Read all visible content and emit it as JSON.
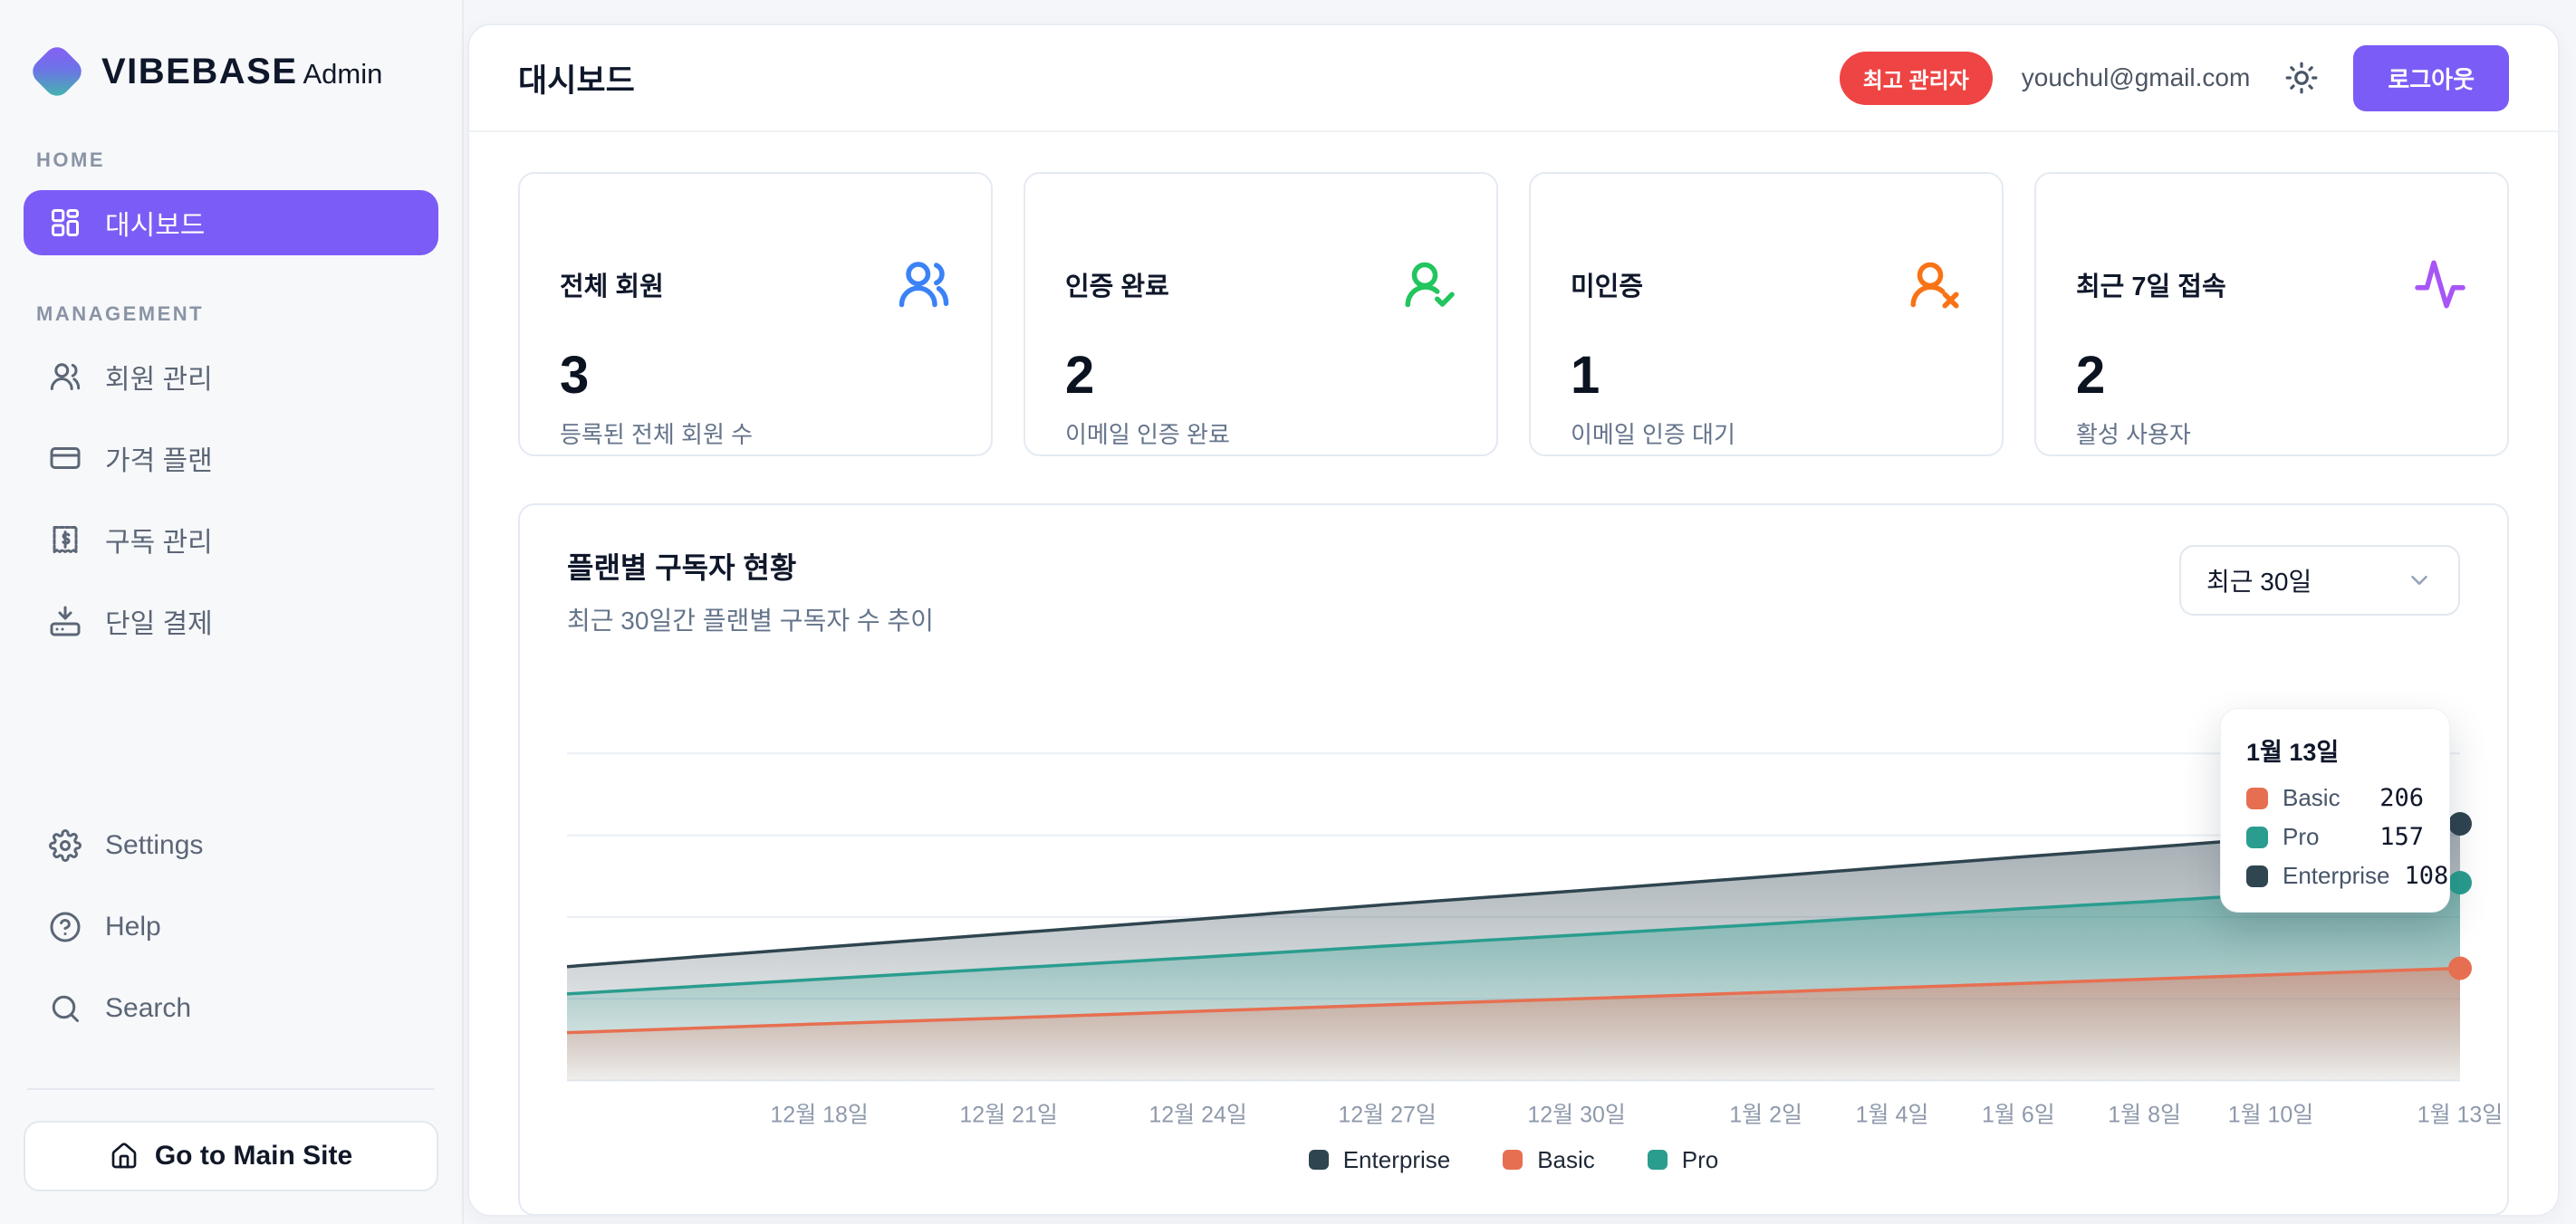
{
  "sidebar": {
    "logo": {
      "brand": "VIBEBASE",
      "suffix": "Admin"
    },
    "sections": [
      {
        "label": "HOME",
        "items": [
          {
            "label": "대시보드",
            "icon": "layout-grid-icon",
            "active": true
          }
        ]
      },
      {
        "label": "MANAGEMENT",
        "items": [
          {
            "label": "회원 관리",
            "icon": "users-icon"
          },
          {
            "label": "가격 플랜",
            "icon": "credit-card-icon"
          },
          {
            "label": "구독 관리",
            "icon": "receipt-icon"
          },
          {
            "label": "단일 결제",
            "icon": "payment-download-icon"
          }
        ]
      }
    ],
    "footer_items": [
      {
        "label": "Settings",
        "icon": "gear-icon"
      },
      {
        "label": "Help",
        "icon": "help-circle-icon"
      },
      {
        "label": "Search",
        "icon": "search-icon"
      }
    ],
    "main_site_button": "Go to Main Site"
  },
  "header": {
    "title": "대시보드",
    "role_badge": "최고 관리자",
    "email": "youchul@gmail.com",
    "logout_label": "로그아웃",
    "badge_color": "#ef4444",
    "accent_color": "#7c5cf6"
  },
  "stats": {
    "cards": [
      {
        "title": "전체 회원",
        "value": "3",
        "subtitle": "등록된 전체 회원 수",
        "icon": "users-icon",
        "color": "#3b82f6"
      },
      {
        "title": "인증 완료",
        "value": "2",
        "subtitle": "이메일 인증 완료",
        "icon": "user-check-icon",
        "color": "#22c55e"
      },
      {
        "title": "미인증",
        "value": "1",
        "subtitle": "이메일 인증 대기",
        "icon": "user-x-icon",
        "color": "#f97316"
      },
      {
        "title": "최근 7일 접속",
        "value": "2",
        "subtitle": "활성 사용자",
        "icon": "activity-icon",
        "color": "#a855f7"
      }
    ]
  },
  "chart_card": {
    "title": "플랜별 구독자 현황",
    "subtitle": "최근 30일간 플랜별 구독자 수 추이",
    "range_selector": "최근 30일"
  },
  "tooltip": {
    "date": "1월 13일",
    "rows": [
      {
        "name": "Basic",
        "value": "206",
        "color": "#e76f51"
      },
      {
        "name": "Pro",
        "value": "157",
        "color": "#2a9d8f"
      },
      {
        "name": "Enterprise",
        "value": "108",
        "color": "#2f4550"
      }
    ]
  },
  "chart_data": {
    "type": "area",
    "stacked": true,
    "title": "플랜별 구독자 현황",
    "x_days": [
      0,
      4,
      7,
      10,
      13,
      16,
      19,
      21,
      23,
      25,
      27,
      30
    ],
    "ticks": [
      {
        "d": 4,
        "label": "12월 18일"
      },
      {
        "d": 7,
        "label": "12월 21일"
      },
      {
        "d": 10,
        "label": "12월 24일"
      },
      {
        "d": 13,
        "label": "12월 27일"
      },
      {
        "d": 16,
        "label": "12월 30일"
      },
      {
        "d": 19,
        "label": "1월 2일"
      },
      {
        "d": 21,
        "label": "1월 4일"
      },
      {
        "d": 23,
        "label": "1월 6일"
      },
      {
        "d": 25,
        "label": "1월 8일"
      },
      {
        "d": 27,
        "label": "1월 10일"
      },
      {
        "d": 30,
        "label": "1월 13일"
      }
    ],
    "series": [
      {
        "name": "Basic",
        "color": "#e76f51",
        "values": [
          88,
          104,
          115,
          127,
          139,
          150,
          162,
          170,
          178,
          186,
          194,
          206
        ]
      },
      {
        "name": "Pro",
        "color": "#2a9d8f",
        "values": [
          71,
          82,
          91,
          99,
          108,
          117,
          125,
          131,
          137,
          142,
          148,
          157
        ]
      },
      {
        "name": "Enterprise",
        "color": "#2f4550",
        "values": [
          50,
          58,
          64,
          70,
          76,
          81,
          87,
          91,
          95,
          99,
          103,
          108
        ]
      }
    ],
    "legend_items": [
      {
        "name": "Enterprise",
        "color": "#2f4550"
      },
      {
        "name": "Basic",
        "color": "#e76f51"
      },
      {
        "name": "Pro",
        "color": "#2a9d8f"
      }
    ],
    "ylim": [
      0,
      720
    ],
    "grid_values": [
      0,
      150,
      300,
      450,
      600
    ],
    "grid": true,
    "legend_position": "bottom"
  }
}
